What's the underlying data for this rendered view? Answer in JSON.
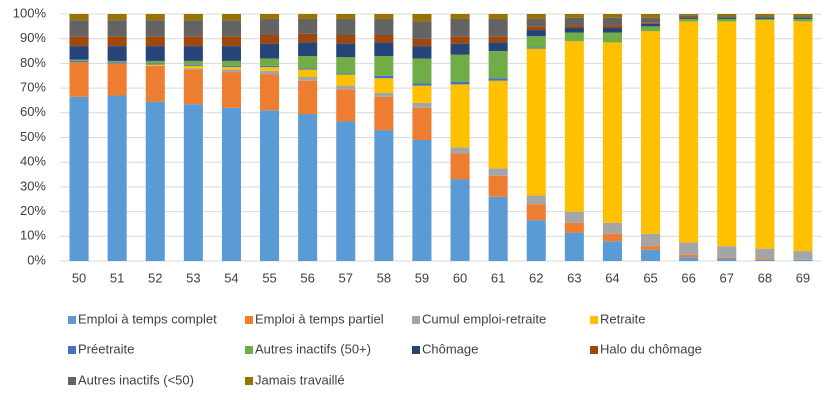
{
  "chart_data": {
    "type": "stacked_bar",
    "categories": [
      "50",
      "51",
      "52",
      "53",
      "54",
      "55",
      "56",
      "57",
      "58",
      "59",
      "60",
      "61",
      "62",
      "63",
      "64",
      "65",
      "66",
      "67",
      "68",
      "69"
    ],
    "ylim": [
      0,
      100
    ],
    "yticks": [
      {
        "value": 0,
        "label": "0%"
      },
      {
        "value": 10,
        "label": "10%"
      },
      {
        "value": 20,
        "label": "20%"
      },
      {
        "value": 30,
        "label": "30%"
      },
      {
        "value": 40,
        "label": "40%"
      },
      {
        "value": 50,
        "label": "50%"
      },
      {
        "value": 60,
        "label": "60%"
      },
      {
        "value": 70,
        "label": "70%"
      },
      {
        "value": 80,
        "label": "80%"
      },
      {
        "value": 90,
        "label": "90%"
      },
      {
        "value": 100,
        "label": "100%"
      }
    ],
    "grid": true,
    "series": [
      {
        "name": "Emploi à temps complet",
        "color": "#5b9bd5",
        "values": [
          66.5,
          67,
          64.5,
          63.5,
          62,
          61,
          59.5,
          56.5,
          53,
          49,
          33,
          26,
          16.5,
          11.5,
          8,
          4.5,
          1.5,
          1,
          0.5,
          0.5
        ]
      },
      {
        "name": "Emploi à temps partiel",
        "color": "#ed7d31",
        "values": [
          14,
          13,
          14.5,
          14,
          14.5,
          14.5,
          13.5,
          13,
          13.5,
          13,
          10.5,
          8.5,
          6.5,
          4,
          3,
          1.5,
          1,
          0.5,
          0.5,
          0
        ]
      },
      {
        "name": "Cumul emploi-retraite",
        "color": "#a5a5a5",
        "values": [
          0,
          0,
          0,
          0.5,
          1,
          1.5,
          1.5,
          1.5,
          1.5,
          2,
          2.5,
          3,
          3.5,
          4.5,
          4.5,
          5,
          5,
          4.5,
          4,
          3.5
        ]
      },
      {
        "name": "Retraite",
        "color": "#ffc000",
        "values": [
          0,
          0,
          0.5,
          1,
          1,
          1.5,
          3,
          4.5,
          6,
          7,
          25.5,
          35.5,
          59.5,
          69,
          73,
          82,
          89.5,
          91,
          92.5,
          93
        ]
      },
      {
        "name": "Préetraite",
        "color": "#4472c4",
        "values": [
          0.5,
          0.5,
          0.5,
          0.5,
          0.5,
          0.5,
          0.5,
          0.5,
          1,
          1,
          1,
          1,
          0.5,
          0,
          0,
          0,
          0,
          0,
          0,
          0
        ]
      },
      {
        "name": "Autres inactifs (50+)",
        "color": "#70ad47",
        "values": [
          0.5,
          0.5,
          1,
          1.5,
          2,
          3,
          5,
          6.5,
          8,
          10,
          11,
          11,
          4.5,
          3.5,
          4,
          2,
          1,
          1,
          0.5,
          1
        ]
      },
      {
        "name": "Chômage",
        "color": "#264478",
        "values": [
          5.5,
          6,
          6,
          6,
          6,
          6,
          5.5,
          5.5,
          5.5,
          5,
          4.5,
          3.5,
          2.5,
          2,
          2,
          1,
          0.5,
          0.5,
          0.5,
          0.5
        ]
      },
      {
        "name": "Halo du chômage",
        "color": "#9e480e",
        "values": [
          4,
          4,
          4,
          4,
          4,
          3.5,
          3.5,
          3.5,
          3,
          3,
          3,
          2.5,
          1.5,
          1,
          1,
          0.5,
          0.5,
          0,
          0,
          0
        ]
      },
      {
        "name": "Autres inactifs (<50)",
        "color": "#636363",
        "values": [
          6.5,
          6.5,
          6.5,
          6.5,
          6.5,
          6.5,
          6,
          6.5,
          6.5,
          7,
          7,
          7,
          3,
          3,
          3,
          2,
          0.5,
          0.5,
          0.5,
          0.5
        ]
      },
      {
        "name": "Jamais travaillé",
        "color": "#997300",
        "values": [
          2.5,
          2.5,
          2.5,
          2.5,
          2.5,
          2,
          2,
          2,
          2,
          3,
          2,
          2,
          2,
          1.5,
          1.5,
          1.5,
          0.5,
          1,
          1,
          1
        ]
      }
    ]
  }
}
